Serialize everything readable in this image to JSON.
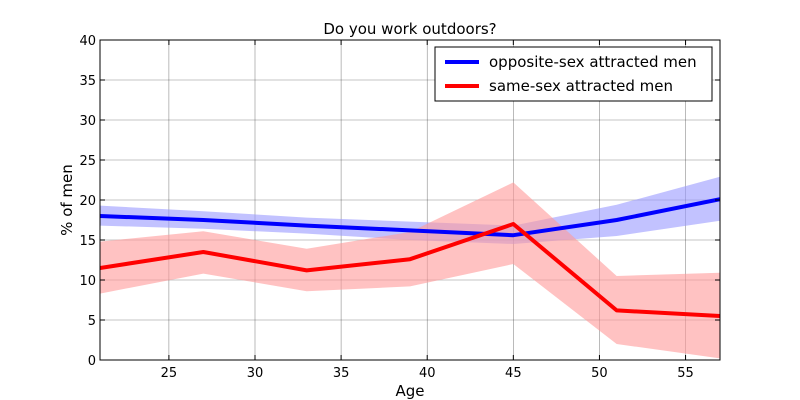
{
  "chart_data": {
    "type": "line",
    "title": "Do you work outdoors?",
    "xlabel": "Age",
    "ylabel": "%  of men",
    "xlim": [
      21,
      57
    ],
    "ylim": [
      0,
      40
    ],
    "xticks": [
      25,
      30,
      35,
      40,
      45,
      50,
      55
    ],
    "yticks": [
      0,
      5,
      10,
      15,
      20,
      25,
      30,
      35,
      40
    ],
    "grid": true,
    "legend_position": "top-right",
    "series": [
      {
        "name": "opposite-sex attracted men",
        "color": "#0000ff",
        "band_color": "#9999ff",
        "x": [
          21,
          27,
          33,
          39,
          45,
          51,
          57
        ],
        "values": [
          18.0,
          17.5,
          16.8,
          16.2,
          15.6,
          17.5,
          20.1
        ],
        "lower": [
          16.8,
          16.4,
          15.8,
          15.0,
          14.5,
          15.5,
          17.4
        ],
        "upper": [
          19.3,
          18.6,
          17.8,
          17.3,
          16.8,
          19.4,
          22.9
        ]
      },
      {
        "name": "same-sex attracted men",
        "color": "#ff0000",
        "band_color": "#ff9999",
        "x": [
          21,
          27,
          33,
          39,
          45,
          51,
          57
        ],
        "values": [
          11.5,
          13.5,
          11.2,
          12.6,
          17.0,
          6.2,
          5.5
        ],
        "lower": [
          8.3,
          10.8,
          8.6,
          9.2,
          12.0,
          2.0,
          0.2
        ],
        "upper": [
          14.8,
          16.1,
          13.9,
          16.0,
          22.2,
          10.5,
          10.9
        ]
      }
    ]
  }
}
